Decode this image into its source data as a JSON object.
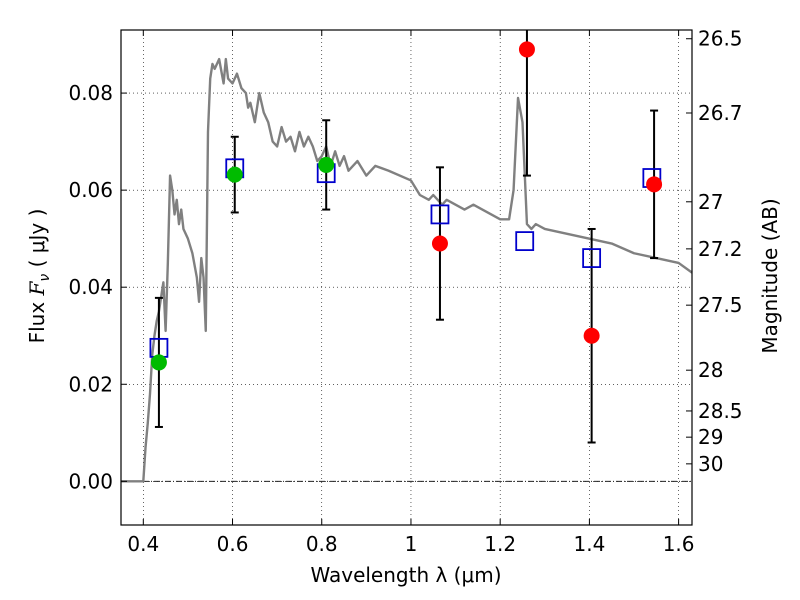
{
  "chart_data": {
    "type": "scatter",
    "xlabel": "Wavelength  λ (μm)",
    "ylabel": {
      "prefix": "Flux",
      "symbol": "F",
      "subscript": "ν",
      "unit": "( μJy )"
    },
    "y2label": "Magnitude (AB)",
    "xlim": [
      0.35,
      1.63
    ],
    "ylim": [
      -0.009,
      0.093
    ],
    "x_ticks": [
      0.4,
      0.6,
      0.8,
      1.0,
      1.2,
      1.4,
      1.6
    ],
    "x_tick_labels": [
      "0.4",
      "0.6",
      "0.8",
      "1",
      "1.2",
      "1.4",
      "1.6"
    ],
    "y_ticks": [
      0.0,
      0.02,
      0.04,
      0.06,
      0.08
    ],
    "y_tick_labels": [
      "0.00",
      "0.02",
      "0.04",
      "0.06",
      "0.08"
    ],
    "y2_ticks": [
      {
        "label": "26.5",
        "flux": 0.0912
      },
      {
        "label": "26.7",
        "flux": 0.0759
      },
      {
        "label": "27",
        "flux": 0.0576
      },
      {
        "label": "27.2",
        "flux": 0.0479
      },
      {
        "label": "27.5",
        "flux": 0.0363
      },
      {
        "label": "28",
        "flux": 0.0229
      },
      {
        "label": "28.5",
        "flux": 0.0145
      },
      {
        "label": "29",
        "flux": 0.0091
      },
      {
        "label": "30",
        "flux": 0.0036
      }
    ],
    "grid": true,
    "series": [
      {
        "name": "model spectrum",
        "kind": "line",
        "color": "#808080",
        "x": [
          0.35,
          0.4,
          0.405,
          0.41,
          0.415,
          0.42,
          0.425,
          0.43,
          0.435,
          0.44,
          0.445,
          0.45,
          0.455,
          0.46,
          0.465,
          0.47,
          0.475,
          0.48,
          0.485,
          0.49,
          0.5,
          0.51,
          0.52,
          0.525,
          0.53,
          0.535,
          0.54,
          0.545,
          0.55,
          0.555,
          0.56,
          0.57,
          0.58,
          0.585,
          0.59,
          0.6,
          0.61,
          0.62,
          0.63,
          0.635,
          0.64,
          0.65,
          0.66,
          0.67,
          0.68,
          0.69,
          0.7,
          0.71,
          0.72,
          0.73,
          0.74,
          0.75,
          0.76,
          0.77,
          0.78,
          0.79,
          0.8,
          0.81,
          0.82,
          0.83,
          0.84,
          0.85,
          0.86,
          0.88,
          0.9,
          0.92,
          0.95,
          1.0,
          1.02,
          1.04,
          1.05,
          1.07,
          1.08,
          1.1,
          1.12,
          1.14,
          1.16,
          1.18,
          1.2,
          1.22,
          1.23,
          1.24,
          1.25,
          1.26,
          1.27,
          1.28,
          1.3,
          1.35,
          1.4,
          1.45,
          1.5,
          1.55,
          1.6,
          1.63
        ],
        "y": [
          0.0,
          0.0,
          0.007,
          0.012,
          0.018,
          0.026,
          0.03,
          0.033,
          0.035,
          0.038,
          0.041,
          0.031,
          0.045,
          0.063,
          0.06,
          0.055,
          0.058,
          0.053,
          0.056,
          0.052,
          0.05,
          0.047,
          0.042,
          0.037,
          0.046,
          0.042,
          0.031,
          0.072,
          0.083,
          0.086,
          0.085,
          0.087,
          0.082,
          0.087,
          0.083,
          0.082,
          0.084,
          0.081,
          0.08,
          0.077,
          0.078,
          0.074,
          0.08,
          0.076,
          0.074,
          0.07,
          0.069,
          0.073,
          0.07,
          0.071,
          0.068,
          0.072,
          0.069,
          0.071,
          0.069,
          0.066,
          0.067,
          0.069,
          0.065,
          0.068,
          0.065,
          0.067,
          0.064,
          0.066,
          0.063,
          0.065,
          0.064,
          0.062,
          0.059,
          0.058,
          0.059,
          0.057,
          0.058,
          0.057,
          0.056,
          0.057,
          0.056,
          0.055,
          0.054,
          0.054,
          0.06,
          0.079,
          0.074,
          0.053,
          0.052,
          0.053,
          0.052,
          0.051,
          0.05,
          0.049,
          0.047,
          0.046,
          0.045,
          0.043
        ]
      },
      {
        "name": "model photometry",
        "kind": "marker",
        "marker": "square",
        "color": "#0000cc",
        "x": [
          0.435,
          0.605,
          0.81,
          1.065,
          1.255,
          1.405,
          1.54
        ],
        "y": [
          0.0275,
          0.0645,
          0.0635,
          0.055,
          0.0495,
          0.046,
          0.0625
        ]
      },
      {
        "name": "detections (green)",
        "kind": "marker",
        "marker": "circle",
        "color": "#00bb00",
        "x": [
          0.435,
          0.605,
          0.81
        ],
        "y": [
          0.0245,
          0.0632,
          0.0652
        ],
        "yerr": [
          0.0133,
          0.0078,
          0.0092
        ]
      },
      {
        "name": "detections (red)",
        "kind": "marker",
        "marker": "circle",
        "color": "#ff0000",
        "x": [
          1.065,
          1.26,
          1.405,
          1.545
        ],
        "y": [
          0.049,
          0.089,
          0.03,
          0.0612
        ],
        "yerr": [
          0.0157,
          0.026,
          0.022,
          0.0152
        ]
      }
    ]
  }
}
